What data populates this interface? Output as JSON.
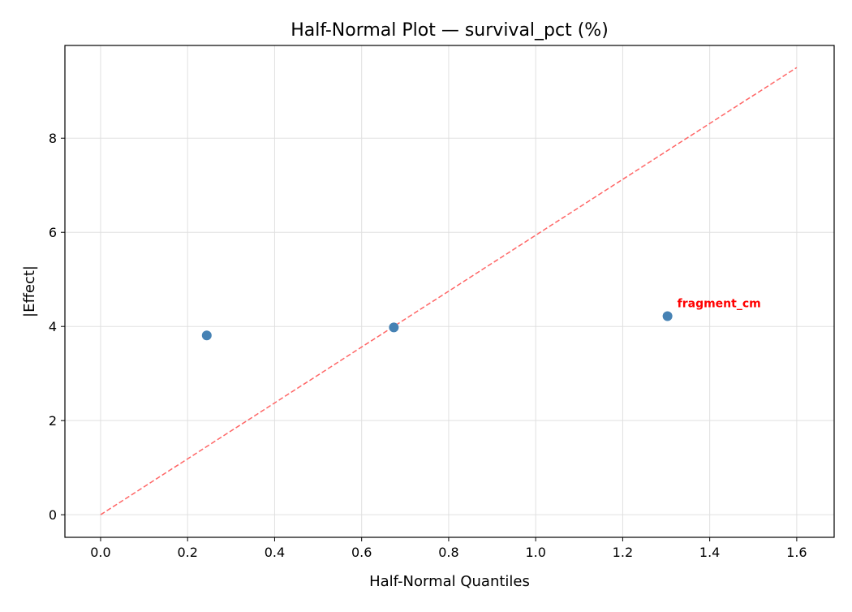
{
  "chart_data": {
    "type": "scatter",
    "title": "Half-Normal Plot — survival_pct (%)",
    "xlabel": "Half-Normal Quantiles",
    "ylabel": "|Effect|",
    "xlim": [
      -0.082,
      1.686
    ],
    "ylim": [
      -0.48,
      9.97
    ],
    "xticks": [
      0.0,
      0.2,
      0.4,
      0.6,
      0.8,
      1.0,
      1.2,
      1.4,
      1.6
    ],
    "xtick_labels": [
      "0.0",
      "0.2",
      "0.4",
      "0.6",
      "0.8",
      "1.0",
      "1.2",
      "1.4",
      "1.6"
    ],
    "yticks": [
      0,
      2,
      4,
      6,
      8
    ],
    "ytick_labels": [
      "0",
      "2",
      "4",
      "6",
      "8"
    ],
    "grid": true,
    "points": [
      {
        "x": 0.244,
        "y": 3.81,
        "label": ""
      },
      {
        "x": 0.674,
        "y": 3.98,
        "label": ""
      },
      {
        "x": 1.303,
        "y": 4.22,
        "label": "fragment_cm"
      }
    ],
    "reference_line": {
      "x": [
        0,
        1.6
      ],
      "y": [
        0,
        9.5
      ],
      "style": "dashed"
    },
    "colors": {
      "points": "#4682b4",
      "line": "#ff6666",
      "annotation": "#ff0000",
      "grid": "#e0e0e0"
    }
  }
}
